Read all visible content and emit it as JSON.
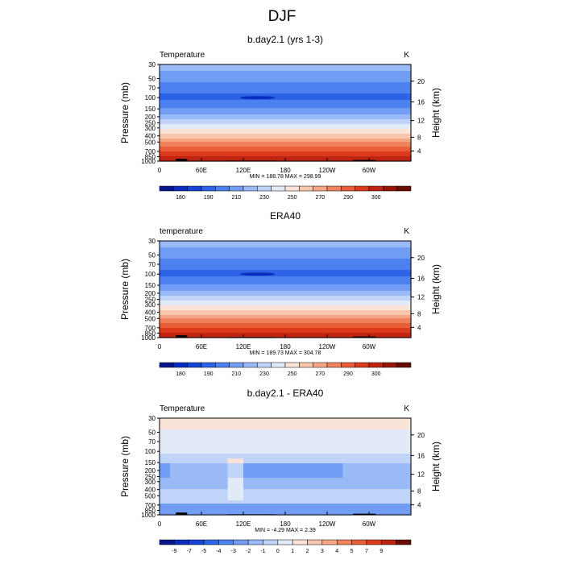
{
  "figure": {
    "title": "DJF"
  },
  "chart_data": [
    {
      "type": "heatmap",
      "title": "b.day2.1 (yrs 1-3)",
      "left_label": "Temperature",
      "right_label": "K",
      "ylabel": "Pressure (mb)",
      "ylabel_right": "Height (km)",
      "x_ticks": [
        "0",
        "60E",
        "120E",
        "180",
        "120W",
        "60W"
      ],
      "y_ticks": [
        "30",
        "50",
        "70",
        "100",
        "150",
        "200",
        "250",
        "300",
        "400",
        "500",
        "700",
        "850",
        "1000"
      ],
      "y_right_ticks": [
        "20",
        "16",
        "12",
        "8",
        "4"
      ],
      "stats": "MIN = 188.78  MAX = 298.99",
      "min": 188.78,
      "max": 298.99,
      "colorbar_labels": [
        "180",
        "190",
        "210",
        "230",
        "250",
        "270",
        "290",
        "300"
      ],
      "colorbar_colors": [
        "#07178a",
        "#0a2dbd",
        "#1544d8",
        "#2d63e6",
        "#4c81ef",
        "#729df4",
        "#9ab9f7",
        "#c0d4f9",
        "#e2eaf7",
        "#f9e4d7",
        "#f8c6ad",
        "#f5a684",
        "#f0835c",
        "#e95e39",
        "#db3b1c",
        "#bf2410",
        "#961508",
        "#690c04"
      ]
    },
    {
      "type": "heatmap",
      "title": "ERA40",
      "left_label": "temperature",
      "right_label": "K",
      "ylabel": "Pressure (mb)",
      "ylabel_right": "Height (km)",
      "x_ticks": [
        "0",
        "60E",
        "120E",
        "180",
        "120W",
        "60W"
      ],
      "y_ticks": [
        "30",
        "50",
        "70",
        "100",
        "150",
        "200",
        "250",
        "300",
        "400",
        "500",
        "700",
        "850",
        "1000"
      ],
      "y_right_ticks": [
        "20",
        "16",
        "12",
        "8",
        "4"
      ],
      "stats": "MIN = 189.73  MAX = 304.78",
      "min": 189.73,
      "max": 304.78,
      "colorbar_labels": [
        "180",
        "190",
        "210",
        "230",
        "250",
        "270",
        "290",
        "300"
      ],
      "colorbar_colors": [
        "#07178a",
        "#0a2dbd",
        "#1544d8",
        "#2d63e6",
        "#4c81ef",
        "#729df4",
        "#9ab9f7",
        "#c0d4f9",
        "#e2eaf7",
        "#f9e4d7",
        "#f8c6ad",
        "#f5a684",
        "#f0835c",
        "#e95e39",
        "#db3b1c",
        "#bf2410",
        "#961508",
        "#690c04"
      ]
    },
    {
      "type": "heatmap",
      "title": "b.day2.1 - ERA40",
      "left_label": "Temperature",
      "right_label": "K",
      "ylabel": "Pressure (mb)",
      "ylabel_right": "Height (km)",
      "x_ticks": [
        "0",
        "60E",
        "120E",
        "180",
        "120W",
        "60W"
      ],
      "y_ticks": [
        "30",
        "50",
        "70",
        "100",
        "150",
        "200",
        "250",
        "300",
        "400",
        "500",
        "700",
        "850",
        "1000"
      ],
      "y_right_ticks": [
        "20",
        "16",
        "12",
        "8",
        "4"
      ],
      "stats": "MIN =  -4.29  MAX =   2.39",
      "min": -4.29,
      "max": 2.39,
      "colorbar_labels": [
        "-9",
        "-7",
        "-5",
        "-4",
        "-3",
        "-2",
        "-1",
        "0",
        "1",
        "2",
        "3",
        "4",
        "5",
        "7",
        "9"
      ],
      "colorbar_colors": [
        "#07178a",
        "#0a2dbd",
        "#1544d8",
        "#2d63e6",
        "#4c81ef",
        "#729df4",
        "#9ab9f7",
        "#c0d4f9",
        "#e2eaf7",
        "#f9e4d7",
        "#f8c6ad",
        "#f5a684",
        "#f0835c",
        "#e95e39",
        "#db3b1c",
        "#bf2410",
        "#690c04"
      ]
    }
  ]
}
